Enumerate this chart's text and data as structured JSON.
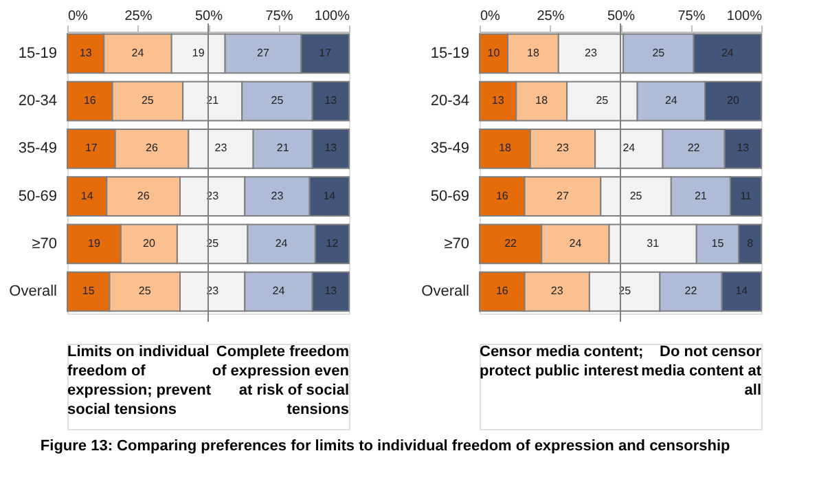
{
  "chart_data": [
    {
      "type": "bar",
      "orientation": "horizontal",
      "stacked": true,
      "data_labels": true,
      "grid": false,
      "legend": false,
      "categories": [
        "15-19",
        "20-34",
        "35-49",
        "50-69",
        "≥70",
        "Overall"
      ],
      "xlim": [
        0,
        100
      ],
      "xticks": [
        {
          "value": 0,
          "label": "0%"
        },
        {
          "value": 25,
          "label": "25%"
        },
        {
          "value": 50,
          "label": "50%"
        },
        {
          "value": 75,
          "label": "75%"
        },
        {
          "value": 100,
          "label": "100%"
        }
      ],
      "series": [
        {
          "color": "#e46c0a",
          "values": [
            13,
            16,
            17,
            14,
            19,
            15
          ]
        },
        {
          "color": "#fac090",
          "values": [
            24,
            25,
            26,
            26,
            20,
            25
          ]
        },
        {
          "color": "#f2f2f2",
          "values": [
            19,
            21,
            23,
            23,
            25,
            23
          ]
        },
        {
          "color": "#b0bbd8",
          "values": [
            27,
            25,
            21,
            23,
            24,
            24
          ]
        },
        {
          "color": "#44557a",
          "values": [
            17,
            13,
            13,
            14,
            12,
            13
          ]
        }
      ],
      "ref_lines": [
        {
          "axis": "x",
          "value": 50,
          "color": "#808080"
        }
      ],
      "annotations": [
        "Limits on individual\nfreedom of\nexpression; prevent\nsocial tensions",
        "Complete freedom\nof expression even\nat risk of social\ntensions"
      ]
    },
    {
      "type": "bar",
      "orientation": "horizontal",
      "stacked": true,
      "data_labels": true,
      "grid": false,
      "legend": false,
      "categories": [
        "15-19",
        "20-34",
        "35-49",
        "50-69",
        "≥70",
        "Overall"
      ],
      "xlim": [
        0,
        100
      ],
      "xticks": [
        {
          "value": 0,
          "label": "0%"
        },
        {
          "value": 25,
          "label": "25%"
        },
        {
          "value": 50,
          "label": "50%"
        },
        {
          "value": 75,
          "label": "75%"
        },
        {
          "value": 100,
          "label": "100%"
        }
      ],
      "series": [
        {
          "color": "#e46c0a",
          "values": [
            10,
            13,
            18,
            16,
            22,
            16
          ]
        },
        {
          "color": "#fac090",
          "values": [
            18,
            18,
            23,
            27,
            24,
            23
          ]
        },
        {
          "color": "#f2f2f2",
          "values": [
            23,
            25,
            24,
            25,
            31,
            25
          ]
        },
        {
          "color": "#b0bbd8",
          "values": [
            25,
            24,
            22,
            21,
            15,
            22
          ]
        },
        {
          "color": "#44557a",
          "values": [
            24,
            20,
            13,
            11,
            8,
            14
          ]
        }
      ],
      "ref_lines": [
        {
          "axis": "x",
          "value": 50,
          "color": "#808080"
        }
      ],
      "annotations": [
        "Censor media content;\nprotect public interest",
        "Do not censor\nmedia content at\nall",
        "Figure 13: Comparing preferences for limits to individual freedom of expression and censorship"
      ]
    }
  ]
}
